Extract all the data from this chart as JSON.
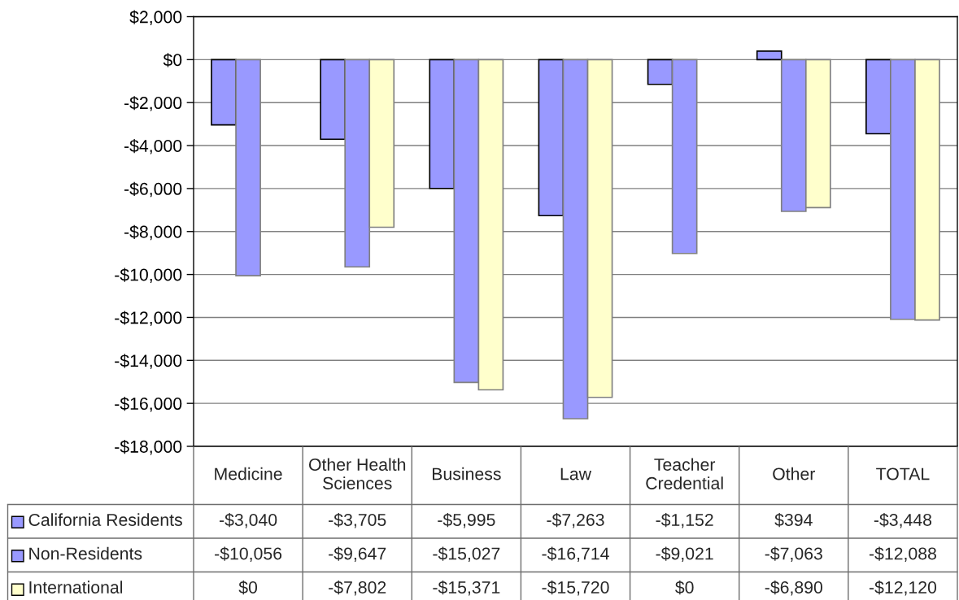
{
  "chart_data": {
    "type": "bar",
    "categories": [
      "Medicine",
      "Other Health Sciences",
      "Business",
      "Law",
      "Teacher Credential",
      "Other",
      "TOTAL"
    ],
    "series": [
      {
        "name": "California Residents",
        "color": "#9999ff",
        "values": [
          -3040,
          -3705,
          -5995,
          -7263,
          -1152,
          394,
          -3448
        ],
        "value_labels": [
          "-$3,040",
          "-$3,705",
          "-$5,995",
          "-$7,263",
          "-$1,152",
          "$394",
          "-$3,448"
        ]
      },
      {
        "name": "Non-Residents",
        "color": "#9999ff",
        "values": [
          -10056,
          -9647,
          -15027,
          -16714,
          -9021,
          -7063,
          -12088
        ],
        "value_labels": [
          "-$10,056",
          "-$9,647",
          "-$15,027",
          "-$16,714",
          "-$9,021",
          "-$7,063",
          "-$12,088"
        ]
      },
      {
        "name": "International",
        "color": "#ffffcc",
        "values": [
          0,
          -7802,
          -15371,
          -15720,
          0,
          -6890,
          -12120
        ],
        "value_labels": [
          "$0",
          "-$7,802",
          "-$15,371",
          "-$15,720",
          "$0",
          "-$6,890",
          "-$12,120"
        ]
      }
    ],
    "ylim": [
      -18000,
      2000
    ],
    "yticks": [
      {
        "value": 2000,
        "label": "$2,000"
      },
      {
        "value": 0,
        "label": "$0"
      },
      {
        "value": -2000,
        "label": "-$2,000"
      },
      {
        "value": -4000,
        "label": "-$4,000"
      },
      {
        "value": -6000,
        "label": "-$6,000"
      },
      {
        "value": -8000,
        "label": "-$8,000"
      },
      {
        "value": -10000,
        "label": "-$10,000"
      },
      {
        "value": -12000,
        "label": "-$12,000"
      },
      {
        "value": -14000,
        "label": "-$14,000"
      },
      {
        "value": -16000,
        "label": "-$16,000"
      },
      {
        "value": -18000,
        "label": "-$18,000"
      }
    ],
    "grid": "y",
    "legend": "bottom left"
  }
}
